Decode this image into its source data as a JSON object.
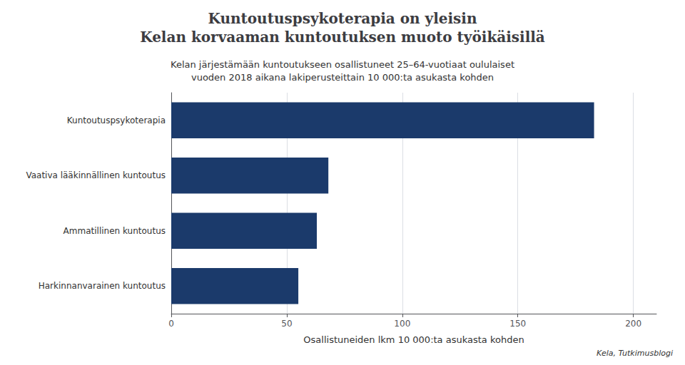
{
  "chart_data": {
    "type": "bar",
    "orientation": "horizontal",
    "title": "Kuntoutuspsykoterapia on yleisin\nKelan korvaaman kuntoutuksen muoto työikäisillä",
    "subtitle": "Kelan järjestämään kuntoutukseen osallistuneet 25–64-vuotiaat oululaiset\nvuoden 2018 aikana lakiperusteittain 10 000:ta asukasta kohden",
    "annotations": [
      "Kela, Tutkimusblogi"
    ],
    "categories": [
      "Harkinnanvarainen kuntoutus",
      "Ammatillinen kuntoutus",
      "Vaativa lääkinnällinen kuntoutus",
      "Kuntoutuspsykoterapia"
    ],
    "values": [
      55,
      63,
      68,
      183
    ],
    "color": "#1b3a6b",
    "xlabel": "Osallistuneiden lkm 10 000:ta asukasta kohden",
    "xlim": [
      0,
      210
    ],
    "xticks": [
      0,
      50,
      100,
      150,
      200
    ],
    "grid": true
  }
}
